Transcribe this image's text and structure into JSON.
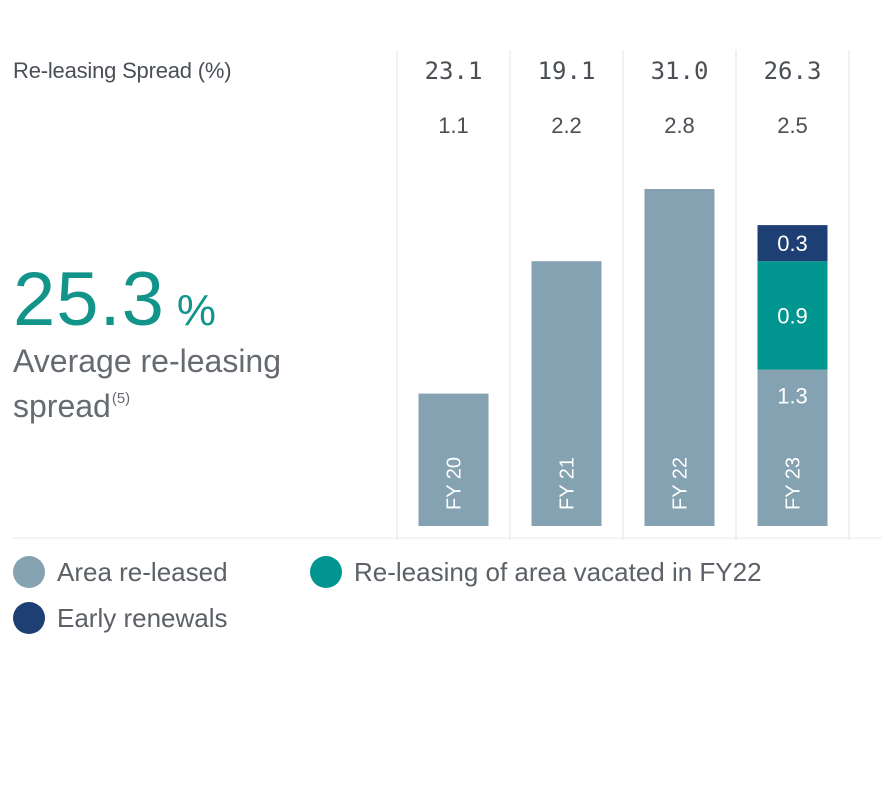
{
  "chart_data": {
    "type": "bar",
    "title": "Re-leasing Spread (%)",
    "categories": [
      "FY 20",
      "FY 21",
      "FY 22",
      "FY 23"
    ],
    "totals": [
      "23.1",
      "19.1",
      "31.0",
      "26.3"
    ],
    "secondary_values": [
      "1.1",
      "2.2",
      "2.8",
      "2.5"
    ],
    "series": [
      {
        "name": "Area re-leased",
        "color": "#85a2b3",
        "values": [
          1.1,
          2.2,
          2.8,
          1.3
        ]
      },
      {
        "name": "Re-leasing of area vacated in FY22",
        "color": "#00968f",
        "values": [
          0,
          0,
          0,
          0.9
        ]
      },
      {
        "name": "Early renewals",
        "color": "#1e3f73",
        "values": [
          0,
          0,
          0,
          0.3
        ]
      }
    ],
    "segment_labels": {
      "FY 23": [
        "1.3",
        "0.9",
        "0.3"
      ]
    },
    "ylim": [
      0,
      2.8
    ]
  },
  "kpi": {
    "value": "25.3",
    "unit": "%",
    "label_line1": "Average re-leasing",
    "label_line2": "spread",
    "footnote": "(5)"
  },
  "legend": [
    {
      "label": "Area re-leased",
      "color": "#85a2b3"
    },
    {
      "label": "Re-leasing of area vacated in FY22",
      "color": "#00968f"
    },
    {
      "label": "Early renewals",
      "color": "#1e3f73"
    }
  ]
}
